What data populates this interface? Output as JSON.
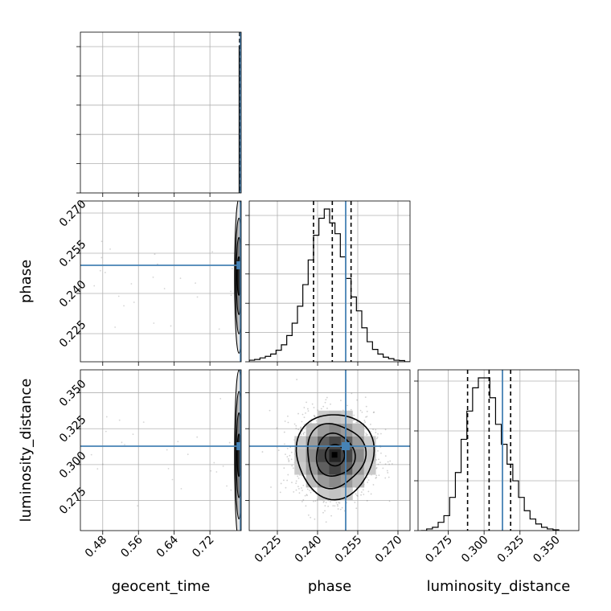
{
  "chart_data": {
    "type": "corner",
    "parameters": [
      "geocent_time",
      "phase",
      "luminosity_distance"
    ],
    "truth_color": "#4682b4",
    "grid": true,
    "truths": {
      "geocent_time": 0.7885,
      "phase": 0.2505,
      "luminosity_distance": 0.3128
    },
    "quantiles_dashed": {
      "geocent_time": [
        0.7865,
        0.7875,
        0.7885
      ],
      "phase": [
        0.2385,
        0.2455,
        0.2525
      ],
      "luminosity_distance": [
        0.2885,
        0.3035,
        0.3185
      ]
    },
    "axes": {
      "geocent_time": {
        "range": [
          0.43,
          0.79
        ],
        "ticks": [
          0.48,
          0.56,
          0.64,
          0.72
        ],
        "tick_labels": [
          "0.48",
          "0.56",
          "0.64",
          "0.72"
        ]
      },
      "phase": {
        "range": [
          0.2145,
          0.2745
        ],
        "ticks": [
          0.225,
          0.24,
          0.255,
          0.27
        ],
        "tick_labels": [
          "0.225",
          "0.240",
          "0.255",
          "0.270"
        ]
      },
      "luminosity_distance": {
        "range": [
          0.254,
          0.366
        ],
        "ticks": [
          0.275,
          0.3,
          0.325,
          0.35
        ],
        "tick_labels": [
          "0.275",
          "0.300",
          "0.325",
          "0.350"
        ]
      }
    },
    "labels": {
      "x": [
        "geocent_time",
        "phase",
        "luminosity_distance"
      ],
      "y": [
        "phase",
        "luminosity_distance"
      ]
    },
    "histograms": {
      "phase": {
        "bins": [
          0.2145,
          0.2165,
          0.2185,
          0.2205,
          0.2225,
          0.2245,
          0.2265,
          0.2285,
          0.2305,
          0.2325,
          0.2345,
          0.2365,
          0.2385,
          0.2405,
          0.2425,
          0.2445,
          0.2465,
          0.2485,
          0.2505,
          0.2525,
          0.2545,
          0.2565,
          0.2585,
          0.2605,
          0.2625,
          0.2645,
          0.2665,
          0.2685,
          0.2705,
          0.2725,
          0.2745
        ],
        "values": [
          0.01,
          0.015,
          0.025,
          0.035,
          0.05,
          0.075,
          0.11,
          0.17,
          0.25,
          0.36,
          0.5,
          0.66,
          0.82,
          0.93,
          0.99,
          0.9,
          0.83,
          0.68,
          0.54,
          0.42,
          0.33,
          0.22,
          0.13,
          0.08,
          0.05,
          0.03,
          0.02,
          0.01,
          0.008,
          0.0
        ]
      },
      "luminosity_distance": {
        "bins": [
          0.256,
          0.26,
          0.264,
          0.268,
          0.272,
          0.276,
          0.28,
          0.284,
          0.288,
          0.292,
          0.296,
          0.3,
          0.304,
          0.308,
          0.312,
          0.316,
          0.32,
          0.324,
          0.328,
          0.332,
          0.336,
          0.34,
          0.344,
          0.348,
          0.352
        ],
        "values": [
          0.0,
          0.01,
          0.02,
          0.05,
          0.09,
          0.2,
          0.35,
          0.55,
          0.72,
          0.86,
          0.92,
          0.92,
          0.8,
          0.64,
          0.52,
          0.4,
          0.3,
          0.2,
          0.12,
          0.07,
          0.04,
          0.02,
          0.01,
          0.005
        ]
      },
      "geocent_time": {
        "note": "sharply peaked single bin",
        "bins": [
          0.7855,
          0.7895
        ],
        "values": [
          0.92
        ]
      }
    },
    "phase_vs_distance_2d": {
      "center": [
        0.2465,
        0.3065
      ],
      "sigma": [
        0.0072,
        0.0148
      ],
      "contour_levels_sigma": [
        0.5,
        1.0,
        1.5,
        2.0
      ]
    }
  }
}
